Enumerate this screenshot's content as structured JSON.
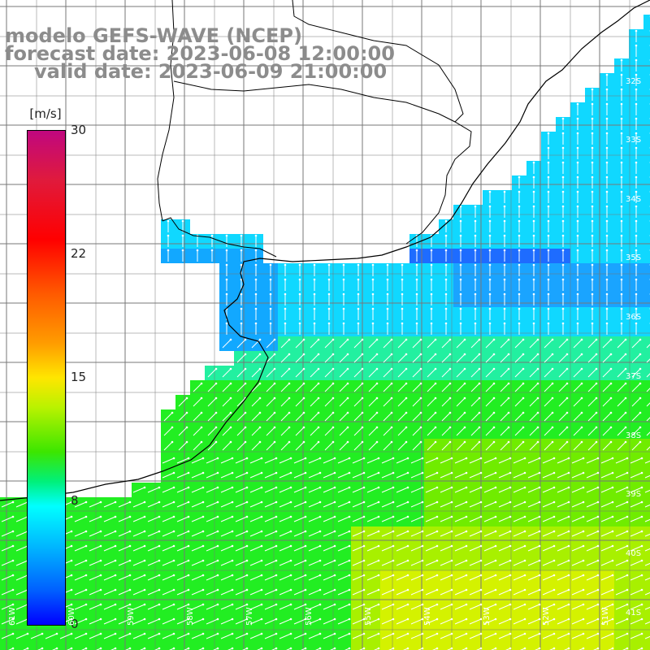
{
  "title": {
    "line1": "modelo GEFS-WAVE (NCEP)",
    "line2": "forecast date: 2023-06-08 12:00:00",
    "line3": "valid date: 2023-06-09 21:00:00"
  },
  "colorbar": {
    "unit": "[m/s]",
    "ticks": [
      "30",
      "22",
      "15",
      "8",
      "0"
    ],
    "colors": [
      "#c0077f",
      "#ff0000",
      "#ff9c00",
      "#ffe600",
      "#3ce600",
      "#00ffff",
      "#0060ff",
      "#0000ff"
    ]
  },
  "lat_labels": [
    "32S",
    "33S",
    "34S",
    "35S",
    "36S",
    "37S",
    "38S",
    "39S",
    "40S",
    "41S"
  ],
  "lon_labels": [
    "61W",
    "60W",
    "59W",
    "58W",
    "57W",
    "56W",
    "55W",
    "54W",
    "53W",
    "52W",
    "51W"
  ],
  "colors": {
    "land": "#ffffff",
    "coastline": "#000000",
    "grid": "#777777",
    "arrows": "#ffffff"
  }
}
